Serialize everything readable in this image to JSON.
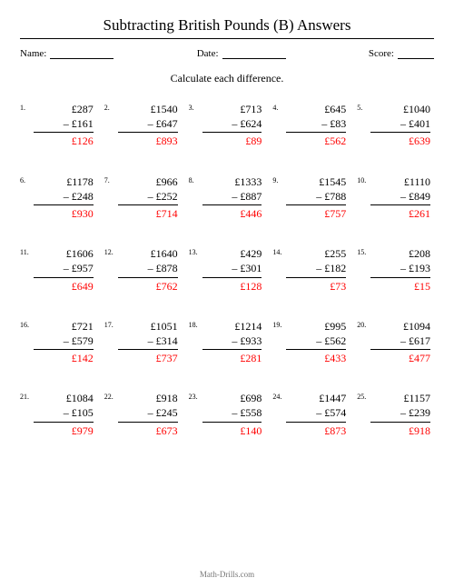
{
  "title": "Subtracting British Pounds (B) Answers",
  "meta": {
    "name_label": "Name:",
    "date_label": "Date:",
    "score_label": "Score:"
  },
  "instruction": "Calculate each difference.",
  "answer_color": "#ff0000",
  "footer": "Math-Drills.com",
  "problems": [
    {
      "n": "1.",
      "a": "£287",
      "b": "– £161",
      "ans": "£126"
    },
    {
      "n": "2.",
      "a": "£1540",
      "b": "– £647",
      "ans": "£893"
    },
    {
      "n": "3.",
      "a": "£713",
      "b": "– £624",
      "ans": "£89"
    },
    {
      "n": "4.",
      "a": "£645",
      "b": "– £83",
      "ans": "£562"
    },
    {
      "n": "5.",
      "a": "£1040",
      "b": "– £401",
      "ans": "£639"
    },
    {
      "n": "6.",
      "a": "£1178",
      "b": "– £248",
      "ans": "£930"
    },
    {
      "n": "7.",
      "a": "£966",
      "b": "– £252",
      "ans": "£714"
    },
    {
      "n": "8.",
      "a": "£1333",
      "b": "– £887",
      "ans": "£446"
    },
    {
      "n": "9.",
      "a": "£1545",
      "b": "– £788",
      "ans": "£757"
    },
    {
      "n": "10.",
      "a": "£1110",
      "b": "– £849",
      "ans": "£261"
    },
    {
      "n": "11.",
      "a": "£1606",
      "b": "– £957",
      "ans": "£649"
    },
    {
      "n": "12.",
      "a": "£1640",
      "b": "– £878",
      "ans": "£762"
    },
    {
      "n": "13.",
      "a": "£429",
      "b": "– £301",
      "ans": "£128"
    },
    {
      "n": "14.",
      "a": "£255",
      "b": "– £182",
      "ans": "£73"
    },
    {
      "n": "15.",
      "a": "£208",
      "b": "– £193",
      "ans": "£15"
    },
    {
      "n": "16.",
      "a": "£721",
      "b": "– £579",
      "ans": "£142"
    },
    {
      "n": "17.",
      "a": "£1051",
      "b": "– £314",
      "ans": "£737"
    },
    {
      "n": "18.",
      "a": "£1214",
      "b": "– £933",
      "ans": "£281"
    },
    {
      "n": "19.",
      "a": "£995",
      "b": "– £562",
      "ans": "£433"
    },
    {
      "n": "20.",
      "a": "£1094",
      "b": "– £617",
      "ans": "£477"
    },
    {
      "n": "21.",
      "a": "£1084",
      "b": "– £105",
      "ans": "£979"
    },
    {
      "n": "22.",
      "a": "£918",
      "b": "– £245",
      "ans": "£673"
    },
    {
      "n": "23.",
      "a": "£698",
      "b": "– £558",
      "ans": "£140"
    },
    {
      "n": "24.",
      "a": "£1447",
      "b": "– £574",
      "ans": "£873"
    },
    {
      "n": "25.",
      "a": "£1157",
      "b": "– £239",
      "ans": "£918"
    }
  ]
}
